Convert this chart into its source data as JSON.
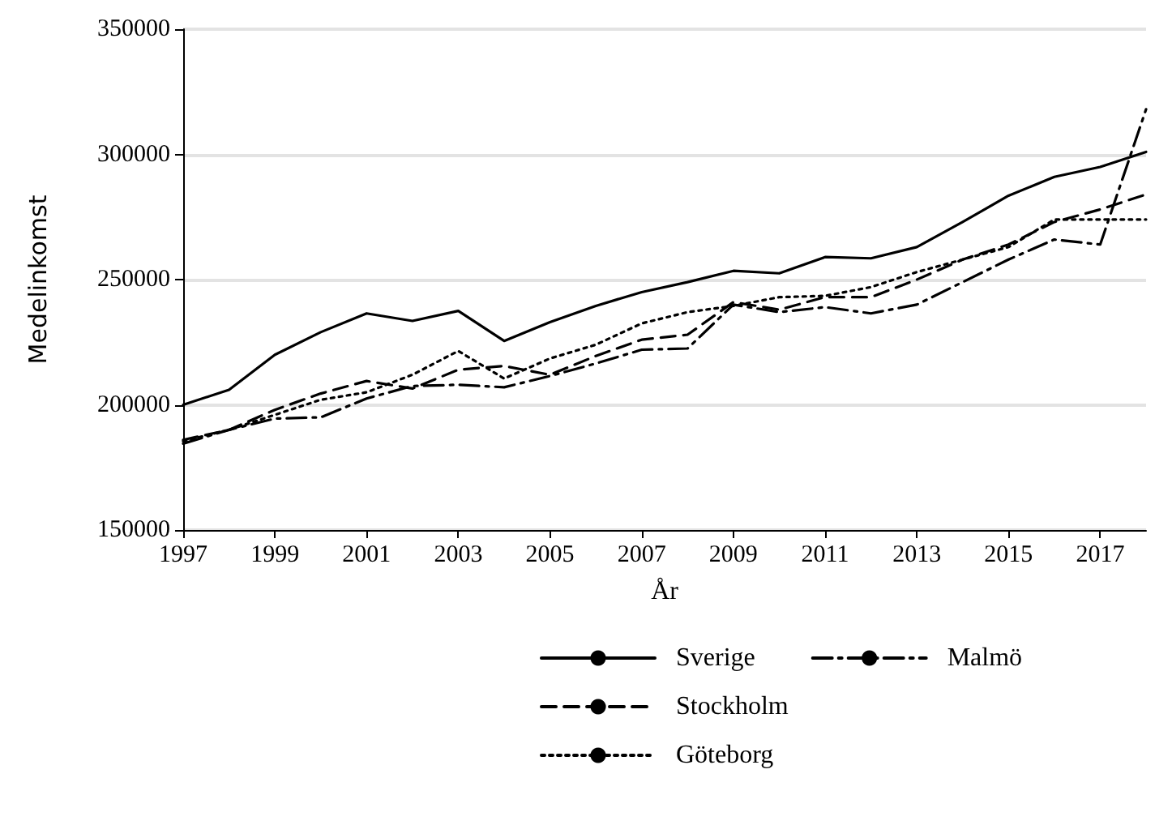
{
  "chart_data": {
    "type": "line",
    "xlabel": "År",
    "ylabel": "Medelinkomst",
    "x": [
      1997,
      1998,
      1999,
      2000,
      2001,
      2002,
      2003,
      2004,
      2005,
      2006,
      2007,
      2008,
      2009,
      2010,
      2011,
      2012,
      2013,
      2014,
      2015,
      2016,
      2017,
      2018
    ],
    "xlim": [
      1997,
      2018
    ],
    "xticks": [
      1997,
      1999,
      2001,
      2003,
      2005,
      2007,
      2009,
      2011,
      2013,
      2015,
      2017
    ],
    "ylim": [
      150000,
      350000
    ],
    "yticks": [
      150000,
      200000,
      250000,
      300000,
      350000
    ],
    "grid": "y",
    "legend": "bottom",
    "series": [
      {
        "name": "Sverige",
        "color": "#000000",
        "line_style": "solid",
        "values": [
          200000,
          206000,
          220000,
          229000,
          236500,
          233500,
          237500,
          225500,
          233000,
          239500,
          245000,
          249000,
          253500,
          252500,
          259000,
          258500,
          263000,
          273000,
          283500,
          291000,
          295000,
          301000
        ]
      },
      {
        "name": "Stockholm",
        "color": "#000000",
        "line_style": "dashed",
        "values": [
          186000,
          190000,
          198000,
          204500,
          209500,
          206500,
          214000,
          215500,
          212000,
          219500,
          226000,
          228000,
          241000,
          238000,
          243000,
          243000,
          250000,
          258000,
          264000,
          273000,
          278000,
          284000
        ]
      },
      {
        "name": "Göteborg",
        "color": "#000000",
        "line_style": "dotted",
        "values": [
          185500,
          190000,
          196000,
          202000,
          205000,
          212000,
          221500,
          210500,
          218500,
          224000,
          232500,
          237000,
          239500,
          243000,
          243500,
          247000,
          253000,
          258000,
          263000,
          274000,
          274000,
          274000
        ]
      },
      {
        "name": "Malmö",
        "color": "#000000",
        "line_style": "dashdot",
        "values": [
          184500,
          190000,
          194500,
          195000,
          202500,
          207500,
          208000,
          207000,
          211500,
          216500,
          222000,
          222500,
          240000,
          237000,
          239000,
          236500,
          240000,
          249000,
          258000,
          266000,
          264000,
          318000
        ]
      }
    ]
  }
}
